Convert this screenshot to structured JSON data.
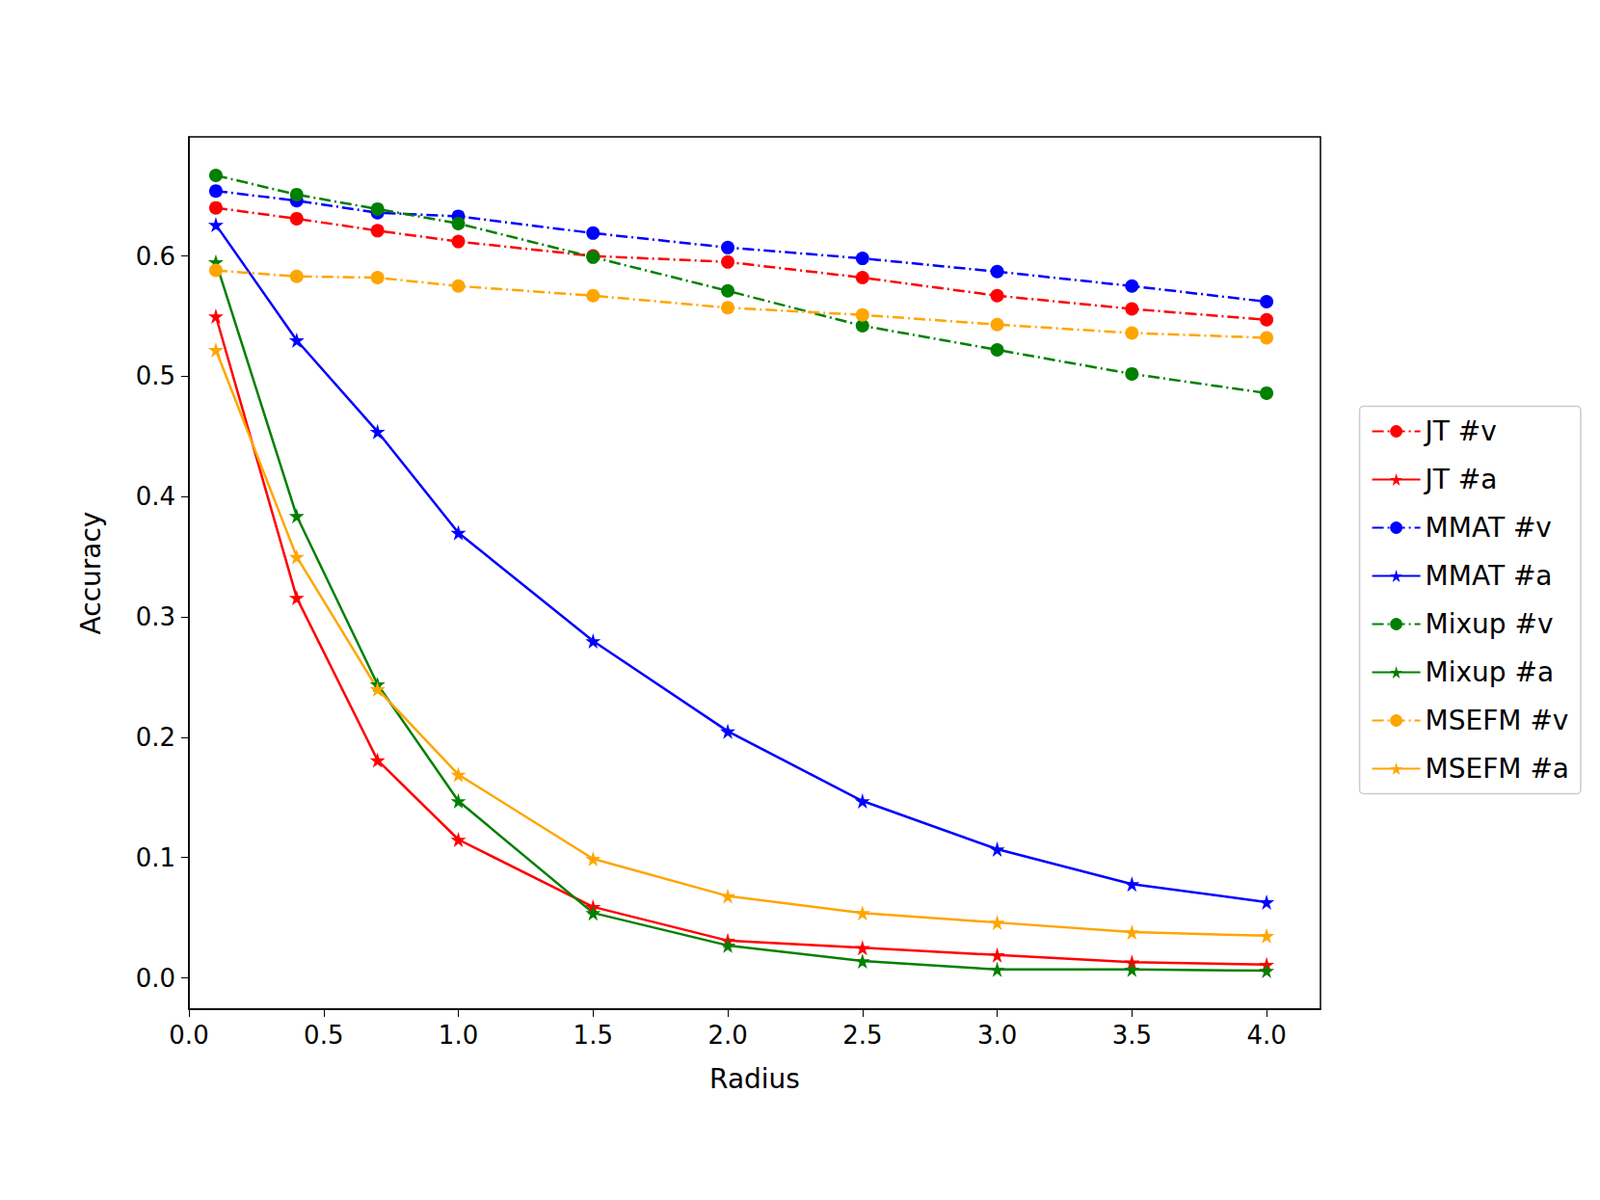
{
  "chart_data": {
    "type": "line",
    "x_label": "Radius",
    "y_label": "Accuracy",
    "x": [
      0.1,
      0.4,
      0.7,
      1.0,
      1.5,
      2.0,
      2.5,
      3.0,
      3.5,
      4.0
    ],
    "xlim": [
      0,
      4.2
    ],
    "xticks": [
      {
        "value": 0,
        "label": "0.0"
      },
      {
        "value": 0.5,
        "label": "0.5"
      },
      {
        "value": 1,
        "label": "1.0"
      },
      {
        "value": 1.5,
        "label": "1.5"
      },
      {
        "value": 2,
        "label": "2.0"
      },
      {
        "value": 2.5,
        "label": "2.5"
      },
      {
        "value": 3,
        "label": "3.0"
      },
      {
        "value": 3.5,
        "label": "3.5"
      },
      {
        "value": 4,
        "label": "4.0"
      }
    ],
    "ylim": [
      -0.026,
      0.699
    ],
    "yticks": [
      {
        "value": 0,
        "label": "0.0"
      },
      0.1,
      0.2,
      0.3,
      0.4,
      0.5,
      0.6
    ],
    "grid": false,
    "legend": "center right",
    "series": [
      {
        "name": "JT #v",
        "color": "#ff0000",
        "marker": "circle",
        "line_style": "dashdot",
        "values": [
          0.64,
          0.631,
          0.621,
          0.612,
          0.6,
          0.595,
          0.582,
          0.567,
          0.556,
          0.547
        ]
      },
      {
        "name": "JT #a",
        "color": "#ff0000",
        "marker": "star",
        "line_style": "solid",
        "values": [
          0.55,
          0.316,
          0.181,
          0.115,
          0.059,
          0.031,
          0.025,
          0.019,
          0.013,
          0.011
        ]
      },
      {
        "name": "MMAT #v",
        "color": "#0000ff",
        "marker": "circle",
        "line_style": "dashdot",
        "values": [
          0.654,
          0.646,
          0.636,
          0.633,
          0.619,
          0.607,
          0.598,
          0.587,
          0.575,
          0.562
        ]
      },
      {
        "name": "MMAT #a",
        "color": "#0000ff",
        "marker": "star",
        "line_style": "solid",
        "values": [
          0.626,
          0.53,
          0.454,
          0.37,
          0.28,
          0.205,
          0.147,
          0.107,
          0.078,
          0.063
        ]
      },
      {
        "name": "Mixup #v",
        "color": "#008000",
        "marker": "circle",
        "line_style": "dashdot",
        "values": [
          0.667,
          0.651,
          0.639,
          0.627,
          0.599,
          0.571,
          0.542,
          0.522,
          0.502,
          0.486
        ]
      },
      {
        "name": "Mixup #a",
        "color": "#008000",
        "marker": "star",
        "line_style": "solid",
        "values": [
          0.595,
          0.384,
          0.244,
          0.147,
          0.054,
          0.027,
          0.014,
          0.007,
          0.007,
          0.006
        ]
      },
      {
        "name": "MSEFM #v",
        "color": "#ffa500",
        "marker": "circle",
        "line_style": "dashdot",
        "values": [
          0.588,
          0.583,
          0.582,
          0.575,
          0.567,
          0.557,
          0.551,
          0.543,
          0.536,
          0.532
        ]
      },
      {
        "name": "MSEFM #a",
        "color": "#ffa500",
        "marker": "star",
        "line_style": "solid",
        "values": [
          0.522,
          0.35,
          0.24,
          0.169,
          0.099,
          0.068,
          0.054,
          0.046,
          0.038,
          0.035
        ]
      }
    ]
  }
}
